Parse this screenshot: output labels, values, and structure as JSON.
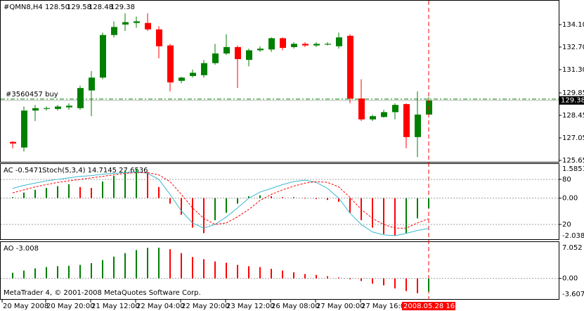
{
  "chart_data": [
    {
      "type": "candlestick",
      "title": "#QMN8,H4",
      "last_bar_labels": {
        "open": "128.50",
        "high": "129.58",
        "low": "128.48",
        "close": "129.38"
      },
      "categories": [
        "20 May 2008",
        null,
        null,
        "20 May 20:00",
        null,
        null,
        null,
        "21 May 12:00",
        null,
        null,
        null,
        "22 May 04:00",
        null,
        null,
        null,
        "22 May 20:00",
        null,
        null,
        null,
        "23 May 12:00",
        null,
        null,
        null,
        "26 May 08:00",
        null,
        null,
        null,
        "27 May 00:00",
        null,
        null,
        null,
        "27 May 16:00",
        null,
        null,
        null,
        null,
        null,
        null
      ],
      "cursor": {
        "label": "2008.05.28 16:00",
        "color": "#ff0000"
      },
      "open": [
        126.8,
        126.45,
        128.75,
        128.85,
        128.85,
        128.95,
        128.9,
        130.0,
        130.8,
        133.45,
        134.1,
        134.2,
        134.2,
        133.8,
        132.8,
        130.6,
        130.9,
        130.95,
        131.7,
        132.3,
        132.7,
        131.9,
        132.5,
        132.55,
        133.25,
        132.7,
        132.9,
        132.8,
        132.85,
        132.75,
        133.4,
        129.5,
        128.2,
        128.35,
        128.65,
        129.15,
        127.1,
        128.5
      ],
      "high": [
        126.85,
        129.0,
        129.1,
        129.0,
        129.1,
        129.2,
        130.3,
        131.2,
        133.6,
        134.3,
        134.8,
        134.6,
        134.8,
        134.0,
        132.9,
        130.85,
        131.3,
        131.9,
        132.9,
        133.5,
        132.8,
        132.6,
        132.75,
        133.3,
        133.3,
        133.0,
        133.0,
        133.0,
        133.0,
        133.6,
        133.5,
        130.7,
        128.5,
        128.8,
        129.2,
        129.2,
        129.95,
        129.58
      ],
      "low": [
        126.4,
        126.2,
        128.1,
        128.75,
        128.75,
        128.8,
        128.8,
        128.4,
        130.7,
        133.3,
        133.7,
        133.9,
        133.7,
        132.0,
        129.95,
        130.45,
        130.8,
        130.8,
        131.6,
        132.2,
        130.15,
        131.5,
        132.4,
        132.4,
        132.5,
        132.6,
        132.7,
        132.7,
        132.8,
        132.6,
        129.2,
        128.1,
        128.1,
        128.3,
        128.2,
        126.4,
        125.85,
        128.48
      ],
      "close": [
        126.7,
        128.75,
        128.9,
        128.9,
        129.0,
        129.05,
        130.15,
        130.8,
        133.45,
        133.95,
        134.25,
        134.3,
        133.8,
        132.75,
        130.5,
        130.8,
        131.1,
        131.7,
        132.3,
        132.7,
        131.95,
        132.5,
        132.6,
        133.25,
        132.65,
        132.9,
        132.8,
        132.9,
        132.9,
        133.3,
        129.5,
        128.2,
        128.4,
        128.65,
        129.1,
        127.1,
        128.5,
        129.38
      ],
      "up_color": "#008000",
      "down_color": "#ff0000",
      "ylim": [
        125.56,
        135.54
      ],
      "yticks": [
        {
          "value": 134.1,
          "label": "134.10"
        },
        {
          "value": 132.7,
          "label": "132.70"
        },
        {
          "value": 131.3,
          "label": "131.30"
        },
        129.85,
        128.45,
        127.05,
        125.65
      ],
      "last_price": 129.38,
      "order": {
        "label": "#3560457 buy",
        "price": 129.46,
        "color": "#008000"
      }
    },
    {
      "type": "histogram-oscillator",
      "title": "AC -0.5471",
      "subtitle": "Stoch(5,3,4) 14.7145 27.6536",
      "values": [
        0.05,
        0.3,
        0.45,
        0.55,
        0.65,
        0.75,
        0.6,
        0.55,
        0.9,
        1.2,
        1.5,
        1.58,
        1.4,
        0.6,
        -0.3,
        -0.9,
        -1.6,
        -1.9,
        -1.2,
        -0.8,
        -0.3,
        0.1,
        0.15,
        0.1,
        0.05,
        0.05,
        0.02,
        -0.05,
        -0.1,
        -0.2,
        -0.8,
        -1.2,
        -1.6,
        -1.95,
        -2.03,
        -1.9,
        -1.1,
        -0.5471
      ],
      "up_color": "#008000",
      "down_color": "#ff0000",
      "ylim": [
        -2.0383,
        1.5851
      ],
      "yticks": [
        {
          "value": 0,
          "label": "0.00"
        }
      ],
      "y2lim": [
        0,
        100
      ],
      "y2ticks": [
        80,
        20
      ],
      "grid": true,
      "series": [
        {
          "color": "#3cb8d0",
          "axis": "y2",
          "dashed": false,
          "values": [
            68,
            72,
            75,
            78,
            80,
            82,
            84,
            85,
            87,
            88,
            89,
            90,
            88,
            80,
            60,
            38,
            22,
            15,
            20,
            30,
            42,
            55,
            63,
            68,
            73,
            77,
            79,
            76,
            68,
            55,
            35,
            20,
            10,
            6,
            5,
            8,
            12,
            14.7145
          ]
        },
        {
          "color": "#ff0000",
          "axis": "y2",
          "dashed": true,
          "values": [
            62,
            66,
            70,
            73,
            76,
            78,
            80,
            82,
            84,
            86,
            88,
            89,
            89,
            86,
            77,
            60,
            42,
            28,
            20,
            22,
            30,
            40,
            52,
            60,
            66,
            71,
            75,
            77,
            76,
            70,
            56,
            40,
            28,
            20,
            15,
            15,
            22,
            27.6536
          ]
        }
      ]
    },
    {
      "type": "histogram",
      "title": "AO -3.008",
      "values": [
        1.3,
        1.8,
        2.3,
        2.6,
        2.8,
        2.9,
        3.1,
        3.5,
        4.2,
        5.0,
        5.8,
        6.5,
        7.0,
        7.05,
        6.7,
        5.8,
        4.9,
        4.4,
        3.9,
        3.6,
        3.1,
        2.8,
        2.6,
        2.2,
        1.8,
        1.4,
        1.0,
        0.8,
        0.5,
        0.2,
        -0.2,
        -0.6,
        -1.2,
        -1.6,
        -2.3,
        -2.9,
        -3.4,
        -3.008
      ],
      "up_color": "#008000",
      "down_color": "#ff0000",
      "ylim": [
        -3.607,
        7.052
      ],
      "yticks": [
        {
          "value": 0,
          "label": "0.00"
        }
      ],
      "grid": true
    }
  ],
  "footer": "MetaTrader 4, © 2001-2008 MetaQuotes Software Corp."
}
